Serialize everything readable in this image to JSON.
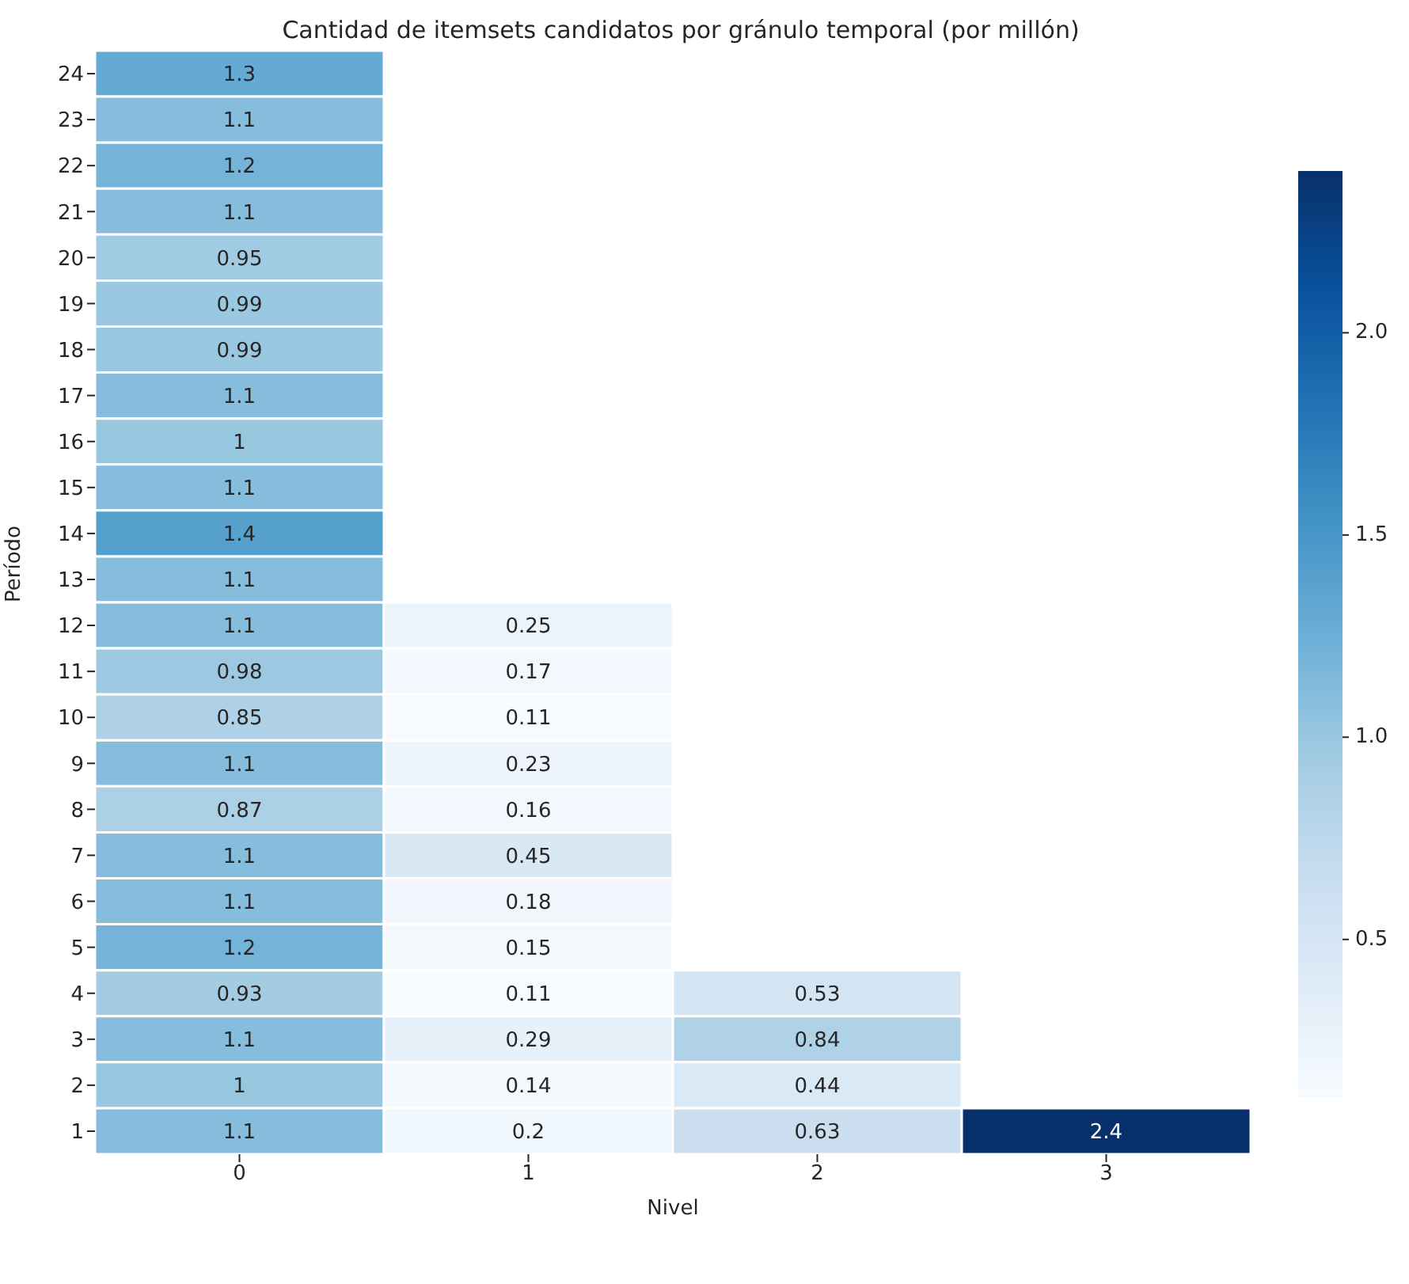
{
  "chart_data": {
    "type": "heatmap",
    "title": "Cantidad de itemsets candidatos por gránulo temporal (por millón)",
    "xlabel": "Nivel",
    "ylabel": "Período",
    "categories": [
      "0",
      "1",
      "2",
      "3"
    ],
    "y_categories": [
      "24",
      "23",
      "22",
      "21",
      "20",
      "19",
      "18",
      "17",
      "16",
      "15",
      "14",
      "13",
      "12",
      "11",
      "10",
      "9",
      "8",
      "7",
      "6",
      "5",
      "4",
      "3",
      "2",
      "1"
    ],
    "cells": [
      [
        1.3,
        null,
        null,
        null
      ],
      [
        1.1,
        null,
        null,
        null
      ],
      [
        1.2,
        null,
        null,
        null
      ],
      [
        1.1,
        null,
        null,
        null
      ],
      [
        0.95,
        null,
        null,
        null
      ],
      [
        0.99,
        null,
        null,
        null
      ],
      [
        0.99,
        null,
        null,
        null
      ],
      [
        1.1,
        null,
        null,
        null
      ],
      [
        1,
        null,
        null,
        null
      ],
      [
        1.1,
        null,
        null,
        null
      ],
      [
        1.4,
        null,
        null,
        null
      ],
      [
        1.1,
        null,
        null,
        null
      ],
      [
        1.1,
        0.25,
        null,
        null
      ],
      [
        0.98,
        0.17,
        null,
        null
      ],
      [
        0.85,
        0.11,
        null,
        null
      ],
      [
        1.1,
        0.23,
        null,
        null
      ],
      [
        0.87,
        0.16,
        null,
        null
      ],
      [
        1.1,
        0.45,
        null,
        null
      ],
      [
        1.1,
        0.18,
        null,
        null
      ],
      [
        1.2,
        0.15,
        null,
        null
      ],
      [
        0.93,
        0.11,
        0.53,
        null
      ],
      [
        1.1,
        0.29,
        0.84,
        null
      ],
      [
        1,
        0.14,
        0.44,
        null
      ],
      [
        1.1,
        0.2,
        0.63,
        2.4
      ]
    ],
    "data_labels": true,
    "clim": [
      0.11,
      2.4
    ],
    "cticks": [
      0.5,
      {
        "value": 1,
        "label": "1.0"
      },
      1.5,
      {
        "value": 2,
        "label": "2.0"
      }
    ]
  }
}
